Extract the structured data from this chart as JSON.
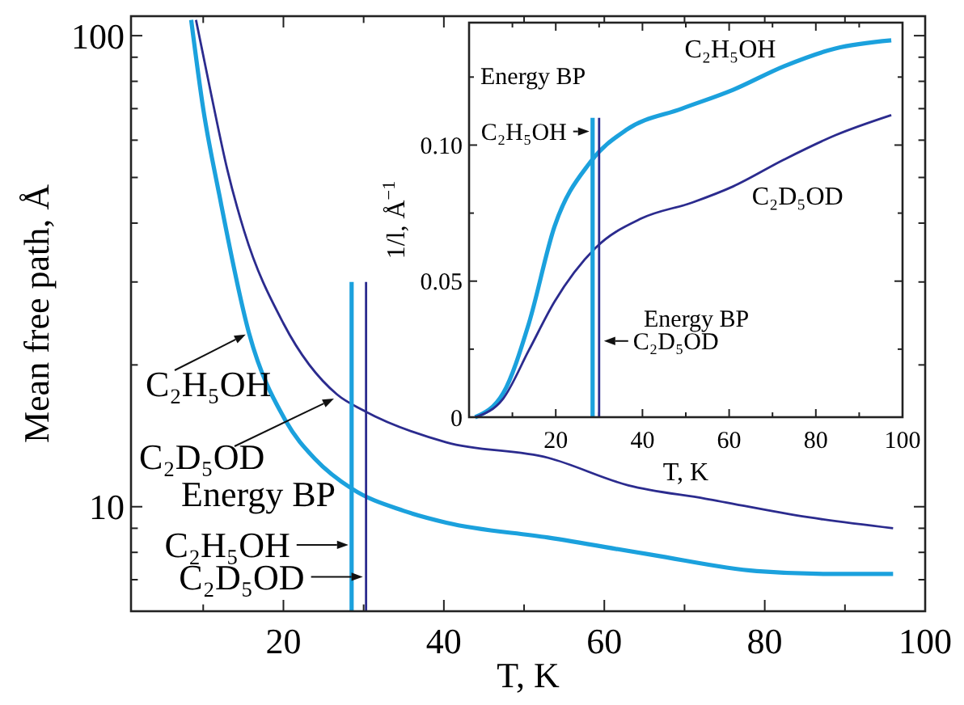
{
  "chart_data": [
    {
      "type": "line",
      "xlabel": "T, K",
      "ylabel": "Mean free path, Å",
      "log": true,
      "xlim": [
        1,
        100
      ],
      "ylim": [
        6,
        110
      ],
      "xticks": [
        {
          "value": 10,
          "label": null
        },
        20,
        {
          "value": 30,
          "label": null
        },
        40,
        {
          "value": 50,
          "label": null
        },
        60,
        {
          "value": 70,
          "label": null
        },
        80,
        {
          "value": 90,
          "label": null
        },
        100
      ],
      "yticks": [
        {
          "value": 7,
          "label": null
        },
        {
          "value": 8,
          "label": null
        },
        {
          "value": 9,
          "label": null
        },
        10,
        {
          "value": 20,
          "label": null
        },
        {
          "value": 30,
          "label": null
        },
        {
          "value": 40,
          "label": null
        },
        {
          "value": 50,
          "label": null
        },
        {
          "value": 60,
          "label": null
        },
        {
          "value": 70,
          "label": null
        },
        {
          "value": 80,
          "label": null
        },
        {
          "value": 90,
          "label": null
        },
        100
      ],
      "series": [
        {
          "color": "#1ba1dd",
          "x": [
            8.5,
            10,
            12,
            15.7,
            20.3,
            24,
            28.6,
            35,
            40.3,
            53,
            66,
            79,
            88,
            96
          ],
          "values": [
            108,
            70,
            46,
            23.4,
            15.2,
            12.6,
            10.9,
            9.8,
            9.25,
            8.6,
            7.9,
            7.3,
            7.2,
            7.2
          ]
        },
        {
          "color": "#2b2b8e",
          "x": [
            9.1,
            11,
            13,
            15.1,
            20,
            26.7,
            30,
            40.3,
            53,
            63,
            72.6,
            85.4,
            96
          ],
          "values": [
            108,
            75,
            52,
            38.5,
            24.5,
            17.3,
            16,
            13.7,
            12.7,
            11.1,
            10.4,
            9.5,
            9
          ]
        },
        {
          "color": "#1ba1dd",
          "x": [
            28.5,
            28.5
          ],
          "values": [
            6,
            30
          ]
        },
        {
          "color": "#2b2b8e",
          "x": [
            30.3,
            30.3
          ],
          "values": [
            6,
            30
          ]
        }
      ],
      "annotations": [
        {
          "text": "C₂H₅OH",
          "x": 15.7,
          "y": 23.4
        },
        {
          "text": "C₂D₅OD",
          "x": 26.7,
          "y": 17.1
        },
        "Energy BP",
        {
          "text": "C₂H₅OH",
          "x": 28.5,
          "y": 8.3
        },
        {
          "text": "C₂D₅OD",
          "x": 30.3,
          "y": 7.1
        }
      ]
    },
    {
      "type": "line",
      "xlabel": "T, K",
      "ylabel": "1/l, Å$^{−1}$",
      "xlim": [
        0,
        100
      ],
      "ylim": [
        0,
        0.145
      ],
      "xticks": [
        {
          "value": 10,
          "label": null
        },
        20,
        {
          "value": 30,
          "label": null
        },
        40,
        {
          "value": 50,
          "label": null
        },
        60,
        {
          "value": 70,
          "label": null
        },
        80,
        {
          "value": 90,
          "label": null
        },
        100
      ],
      "yticks": [
        0,
        {
          "value": 0.025,
          "label": null
        },
        0.05,
        {
          "value": 0.075,
          "label": null
        },
        {
          "value": 0.1,
          "label": "0.10"
        },
        {
          "value": 0.125,
          "label": null
        }
      ],
      "series": [
        {
          "name": "C₂H₅OH",
          "color": "#1ba1dd",
          "x": [
            1.4,
            7.9,
            13.8,
            19.7,
            27.9,
            36.2,
            49.1,
            60.9,
            72.7,
            84.5,
            97.4
          ],
          "values": [
            0,
            0.0089,
            0.0345,
            0.07,
            0.0936,
            0.1055,
            0.1134,
            0.1203,
            0.129,
            0.1355,
            0.1385
          ]
        },
        {
          "name": "C₂D₅OD",
          "color": "#2b2b8e",
          "x": [
            1.4,
            7.9,
            13.8,
            19.7,
            29.1,
            39.7,
            51.5,
            60.9,
            72.7,
            84.5,
            97.4
          ],
          "values": [
            0,
            0.0069,
            0.0246,
            0.0424,
            0.0621,
            0.073,
            0.0789,
            0.0848,
            0.0947,
            0.1036,
            0.111
          ]
        },
        {
          "color": "#1ba1dd",
          "x": [
            28.5,
            28.5
          ],
          "values": [
            0,
            0.11
          ]
        },
        {
          "color": "#2b2b8e",
          "x": [
            30,
            30
          ],
          "values": [
            0,
            0.11
          ]
        }
      ],
      "annotations": [
        "Energy BP",
        {
          "text": "C₂H₅OH",
          "x": 28.5,
          "y": 0.105
        },
        "Energy BP",
        {
          "text": "C₂D₅OD",
          "x": 30,
          "y": 0.028
        }
      ]
    }
  ]
}
